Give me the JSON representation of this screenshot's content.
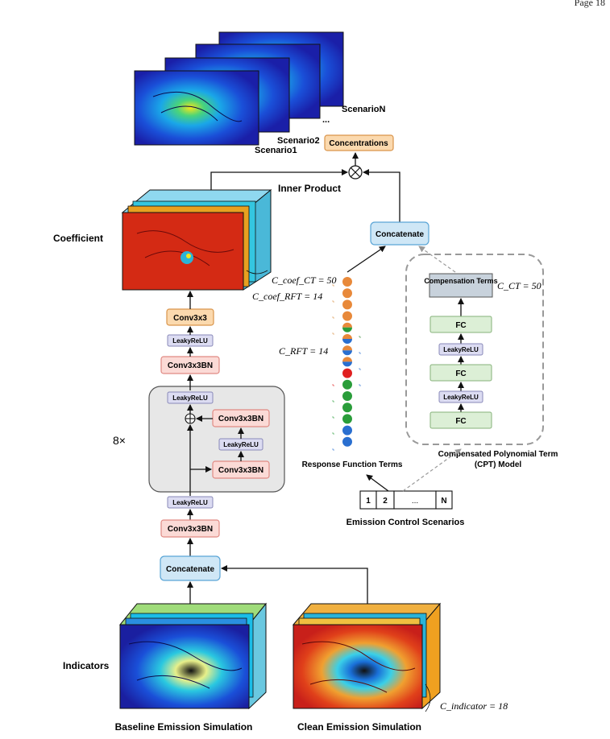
{
  "header": {
    "page": "Page 18"
  },
  "scenarios": {
    "labels": [
      "ScenarioN",
      "...",
      "Scenario2",
      "Scenario1"
    ]
  },
  "nodes": {
    "concentrations": "Concentrations",
    "inner_product": "Inner Product",
    "coefficient": "Coefficient",
    "concatenate_top": "Concatenate",
    "concatenate_bottom": "Concatenate",
    "conv3x3": "Conv3x3",
    "leaky1": "LeakyReLU",
    "conv3x3bn_1": "Conv3x3BN",
    "leaky_block_top": "LeakyReLU",
    "block_conv_a": "Conv3x3BN",
    "block_leaky": "LeakyReLU",
    "block_conv_b": "Conv3x3BN",
    "repeat": "8×",
    "leaky2": "LeakyReLU",
    "conv3x3bn_2": "Conv3x3BN",
    "indicators": "Indicators",
    "baseline": "Baseline Emission Simulation",
    "clean": "Clean Emission Simulation"
  },
  "equations": {
    "coef_ct": "C_coef_CT = 50",
    "coef_rft": "C_coef_RFT = 14",
    "rft": "C_RFT = 14",
    "ct": "C_CT = 50",
    "indicator": "C_indicator = 18"
  },
  "rft": {
    "label": "Response Function Terms",
    "dots": [
      "#e8893a",
      "#e8893a",
      "#e8893a",
      "#e8893a",
      "split-og",
      "split-bo",
      "split-bo",
      "split-bo",
      "#e02020",
      "#2a9d3a",
      "#2a9d3a",
      "#2a9d3a",
      "#2a9d3a",
      "#2a6fd0",
      "#2a6fd0"
    ]
  },
  "cpt": {
    "comp_terms": "Compensation Terms",
    "fc": [
      "FC",
      "FC",
      "FC"
    ],
    "leaky": [
      "LeakyReLU",
      "LeakyReLU"
    ],
    "label_line1": "Compensated Polynomial Term",
    "label_line2": "(CPT) Model"
  },
  "emission": {
    "cells": [
      "1",
      "2",
      "...",
      "N"
    ],
    "label": "Emission Control Scenarios"
  },
  "colors": {
    "orange_fill": "#fbd9ae",
    "orange_stroke": "#d9944a",
    "pink_fill": "#fbdad6",
    "pink_stroke": "#e08a84",
    "blue_fill": "#cfe7f6",
    "blue_stroke": "#5aa5d6",
    "lavender_fill": "#dcdcf2",
    "lavender_stroke": "#8888b8",
    "green_fill": "#dcefd6",
    "green_stroke": "#86b27a"
  }
}
